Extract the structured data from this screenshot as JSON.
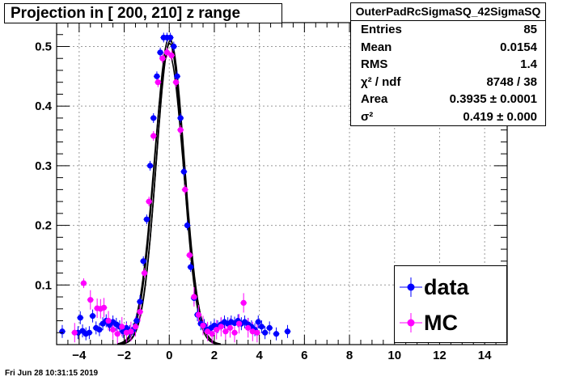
{
  "title": "Projection in [ 200, 210] z range",
  "stats": {
    "name": "OuterPadRcSigmaSQ_42SigmaSQ",
    "rows": [
      {
        "label": "Entries",
        "value": "85"
      },
      {
        "label": "Mean",
        "value": "0.0154"
      },
      {
        "label": "RMS",
        "value": "1.4"
      },
      {
        "label": "χ² / ndf",
        "value": "8748 / 38"
      },
      {
        "label": "Area",
        "value": "0.3935 ± 0.0001"
      },
      {
        "label": "σ²",
        "value": "0.419 ± 0.000"
      }
    ]
  },
  "legend": [
    {
      "label": "data",
      "color": "#0000ff"
    },
    {
      "label": "MC",
      "color": "#ff00ff"
    }
  ],
  "timestamp": "Fri Jun 28 10:31:15 2019",
  "chart_data": {
    "type": "scatter",
    "xlim": [
      -5,
      15
    ],
    "ylim": [
      0,
      0.54
    ],
    "x_ticks": [
      -4,
      -2,
      0,
      2,
      4,
      6,
      8,
      10,
      12,
      14
    ],
    "y_ticks": [
      0.1,
      0.2,
      0.3,
      0.4,
      0.5
    ],
    "grid": true,
    "legend_position": "bottom-right",
    "series": [
      {
        "name": "data",
        "color": "#0000ff",
        "x": [
          -4.75,
          -4.05,
          -3.95,
          -3.85,
          -3.7,
          -3.55,
          -3.4,
          -3.25,
          -3.1,
          -2.95,
          -2.8,
          -2.65,
          -2.5,
          -2.35,
          -2.2,
          -2.05,
          -1.9,
          -1.75,
          -1.6,
          -1.45,
          -1.3,
          -1.15,
          -1.0,
          -0.85,
          -0.7,
          -0.55,
          -0.4,
          -0.25,
          -0.1,
          0.05,
          0.2,
          0.35,
          0.5,
          0.65,
          0.8,
          0.95,
          1.1,
          1.25,
          1.4,
          1.55,
          1.7,
          1.85,
          2.0,
          2.15,
          2.3,
          2.45,
          2.6,
          2.75,
          2.9,
          3.05,
          3.2,
          3.35,
          3.5,
          3.65,
          3.8,
          3.95,
          4.1,
          4.25,
          4.45,
          4.75,
          5.25
        ],
        "y": [
          0.022,
          0.02,
          0.045,
          0.023,
          0.018,
          0.02,
          0.048,
          0.028,
          0.025,
          0.035,
          0.04,
          0.033,
          0.038,
          0.034,
          0.03,
          0.022,
          0.028,
          0.022,
          0.025,
          0.04,
          0.072,
          0.14,
          0.21,
          0.3,
          0.38,
          0.45,
          0.49,
          0.515,
          0.515,
          0.515,
          0.5,
          0.45,
          0.38,
          0.29,
          0.2,
          0.13,
          0.078,
          0.05,
          0.035,
          0.032,
          0.025,
          0.028,
          0.032,
          0.03,
          0.034,
          0.038,
          0.035,
          0.038,
          0.036,
          0.04,
          0.035,
          0.038,
          0.034,
          0.03,
          0.025,
          0.038,
          0.03,
          0.02,
          0.028,
          0.018,
          0.022
        ]
      },
      {
        "name": "MC",
        "color": "#ff00ff",
        "x": [
          -4.2,
          -3.8,
          -3.5,
          -3.2,
          -3.05,
          -2.9,
          -2.7,
          -2.5,
          -2.3,
          -2.1,
          -1.9,
          -1.7,
          -1.5,
          -1.3,
          -1.1,
          -0.9,
          -0.7,
          -0.5,
          -0.3,
          -0.1,
          0.1,
          0.3,
          0.5,
          0.7,
          0.9,
          1.1,
          1.3,
          1.5,
          1.7,
          1.9,
          2.1,
          2.3,
          2.5,
          2.7,
          2.9,
          3.1,
          3.3,
          3.5,
          3.7,
          3.9
        ],
        "y": [
          0.02,
          0.103,
          0.075,
          0.061,
          0.06,
          0.062,
          0.04,
          0.025,
          0.018,
          0.03,
          0.02,
          0.022,
          0.03,
          0.055,
          0.12,
          0.24,
          0.35,
          0.44,
          0.48,
          0.49,
          0.485,
          0.44,
          0.36,
          0.26,
          0.15,
          0.08,
          0.05,
          0.032,
          0.022,
          0.018,
          0.025,
          0.03,
          0.022,
          0.028,
          0.02,
          0.035,
          0.07,
          0.028,
          0.022,
          0.02
        ]
      }
    ]
  }
}
